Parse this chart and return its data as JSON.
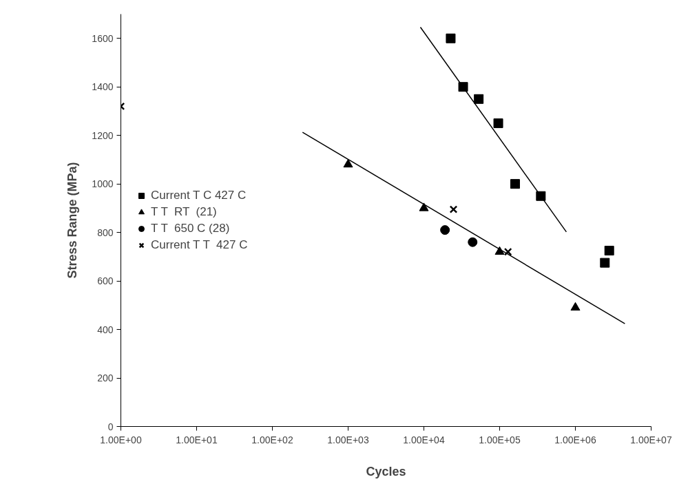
{
  "chart_data": {
    "type": "scatter",
    "xlabel": "Cycles",
    "ylabel": "Stress Range (MPa)",
    "log": "x",
    "grid": false,
    "legend": "left",
    "xlim": [
      1,
      10000000
    ],
    "ylim": [
      0,
      1700
    ],
    "xticks": [
      {
        "value": 1,
        "label": "1.00E+00"
      },
      {
        "value": 10,
        "label": "1.00E+01"
      },
      {
        "value": 100,
        "label": "1.00E+02"
      },
      {
        "value": 1000,
        "label": "1.00E+03"
      },
      {
        "value": 10000,
        "label": "1.00E+04"
      },
      {
        "value": 100000,
        "label": "1.00E+05"
      },
      {
        "value": 1000000,
        "label": "1.00E+06"
      },
      {
        "value": 10000000,
        "label": "1.00E+07"
      }
    ],
    "yticks": [
      0,
      200,
      400,
      600,
      800,
      1000,
      1200,
      1400,
      1600
    ],
    "series": [
      {
        "name": "Current T C 427 C",
        "color": "#000000",
        "marker": "square",
        "x": [
          22600,
          33000,
          53000,
          96000,
          160000,
          350000,
          2800000,
          2450000
        ],
        "values": [
          1600,
          1400,
          1350,
          1250,
          1000,
          950,
          725,
          675
        ]
      },
      {
        "name": "T T  RT  (21)",
        "color": "#000000",
        "marker": "triangle",
        "x": [
          1000,
          10000,
          100000,
          1000000
        ],
        "values": [
          1080,
          900,
          720,
          490
        ]
      },
      {
        "name": "T T  650 C (28)",
        "color": "#000000",
        "marker": "circle",
        "x": [
          19000,
          44000
        ],
        "values": [
          810,
          760
        ]
      },
      {
        "name": "Current T T  427 C",
        "color": "#000000",
        "marker": "cross",
        "x": [
          1,
          24600,
          129000
        ],
        "values": [
          1320,
          895,
          720
        ]
      },
      {
        "type": "line",
        "color": "#000000",
        "line_style": "solid",
        "x": [
          9000,
          760000
        ],
        "values": [
          1646,
          802
        ]
      },
      {
        "type": "line",
        "color": "#000000",
        "line_style": "solid",
        "x": [
          250,
          4500000
        ],
        "values": [
          1213,
          424
        ]
      }
    ]
  }
}
